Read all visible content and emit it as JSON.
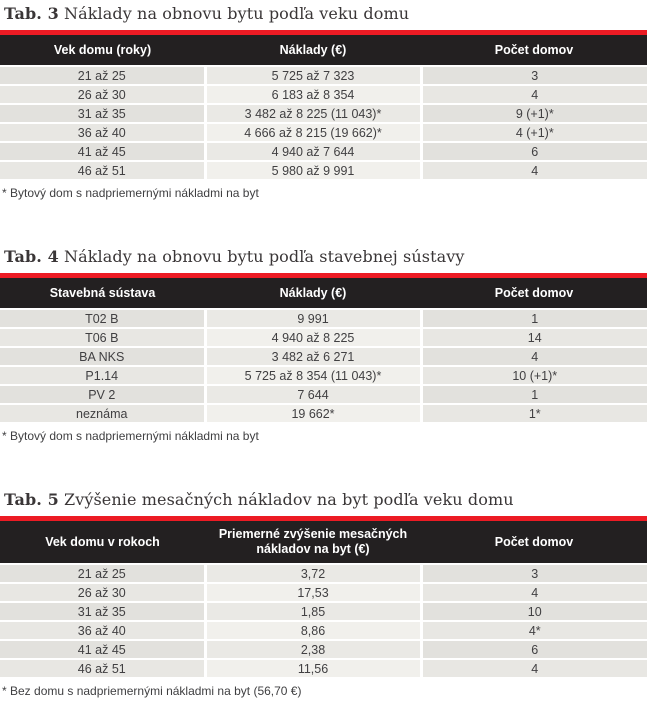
{
  "colors": {
    "accent_red": "#ec1b24",
    "header_black": "#232021",
    "row_gray": "#e2e1dd",
    "row_gray_light": "#e8e7e3",
    "text": "#414042"
  },
  "tables": [
    {
      "title_prefix": "Tab. 3",
      "title_rest": " Náklady na obnovu bytu podľa veku domu",
      "columns": [
        "Vek domu (roky)",
        "Náklady (€)",
        "Počet domov"
      ],
      "rows": [
        [
          "21 až 25",
          "5 725 až 7 323",
          "3"
        ],
        [
          "26 až 30",
          "6 183 až 8 354",
          "4"
        ],
        [
          "31 až 35",
          "3 482 až 8 225 (11 043)*",
          "9 (+1)*"
        ],
        [
          "36 až 40",
          "4 666 až 8 215 (19 662)*",
          "4 (+1)*"
        ],
        [
          "41 až 45",
          "4 940 až 7 644",
          "6"
        ],
        [
          "46 až 51",
          "5 980 až 9 991",
          "4"
        ]
      ],
      "footnote": "* Bytový dom s nadpriemernými nákladmi na byt"
    },
    {
      "title_prefix": "Tab. 4",
      "title_rest": " Náklady na obnovu bytu podľa stavebnej sústavy",
      "columns": [
        "Stavebná sústava",
        "Náklady (€)",
        "Počet domov"
      ],
      "rows": [
        [
          "T02 B",
          "9 991",
          "1"
        ],
        [
          "T06 B",
          "4 940 až 8 225",
          "14"
        ],
        [
          "BA NKS",
          "3 482 až 6 271",
          "4"
        ],
        [
          "P1.14",
          "5 725 až 8 354 (11 043)*",
          "10 (+1)*"
        ],
        [
          "PV 2",
          "7 644",
          "1"
        ],
        [
          "neznáma",
          "19 662*",
          "1*"
        ]
      ],
      "footnote": "* Bytový dom s nadpriemernými nákladmi na byt"
    },
    {
      "title_prefix": "Tab. 5",
      "title_rest": " Zvýšenie mesačných nákladov na byt podľa veku domu",
      "columns": [
        "Vek domu v rokoch",
        "Priemerné zvýšenie mesačných nákladov na byt (€)",
        "Počet domov"
      ],
      "rows": [
        [
          "21 až 25",
          "3,72",
          "3"
        ],
        [
          "26 až 30",
          "17,53",
          "4"
        ],
        [
          "31 až 35",
          "1,85",
          "10"
        ],
        [
          "36 až 40",
          "8,86",
          "4*"
        ],
        [
          "41 až 45",
          "2,38",
          "6"
        ],
        [
          "46 až 51",
          "11,56",
          "4"
        ]
      ],
      "footnote": "* Bez domu s nadpriemernými nákladmi na byt (56,70 €)"
    }
  ]
}
